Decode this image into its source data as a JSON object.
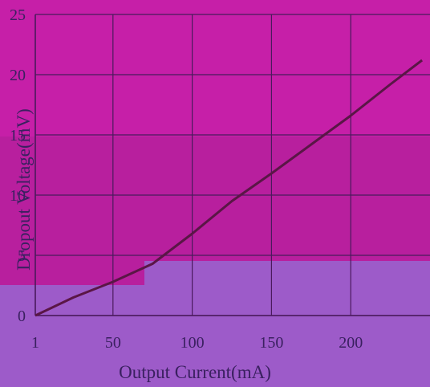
{
  "chart_data": {
    "type": "line",
    "xlabel": "Output Current(mA)",
    "ylabel": "Dropout Voltage(mV)",
    "xticks": [
      1,
      50,
      100,
      150,
      200
    ],
    "yticks": [
      0,
      5,
      10,
      15,
      20,
      25
    ],
    "xlim": [
      1,
      250
    ],
    "ylim": [
      0,
      25
    ],
    "grid": true,
    "series": [
      {
        "x": [
          1,
          25,
          50,
          75,
          100,
          125,
          150,
          175,
          200,
          225,
          245
        ],
        "y": [
          0,
          1.5,
          2.8,
          4.3,
          6.8,
          9.5,
          11.8,
          14.2,
          16.6,
          19.2,
          21.2
        ]
      }
    ]
  },
  "colors": {
    "background_bottom": "#9d5bc9",
    "background_mid": "#b81f9e",
    "background_top": "#c61fa8",
    "grid": "#4a1a5c",
    "line": "#5a1646",
    "text": "#3a2060"
  }
}
